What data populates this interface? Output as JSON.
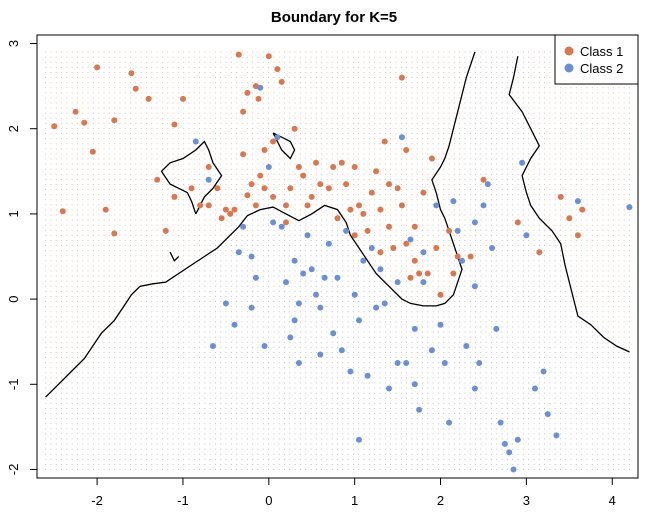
{
  "chart_data": {
    "type": "scatter",
    "title": "Boundary for K=5",
    "xlabel": "",
    "ylabel": "",
    "xlim": [
      -2.7,
      4.3
    ],
    "ylim": [
      -2.1,
      3.1
    ],
    "x_ticks": [
      -2,
      -1,
      0,
      1,
      2,
      3,
      4
    ],
    "y_ticks": [
      -2,
      -1,
      0,
      1,
      2,
      3
    ],
    "legend": {
      "position": "top-right",
      "entries": [
        {
          "label": "Class 1",
          "color": "#D9774F"
        },
        {
          "label": "Class 2",
          "color": "#6A8FD6"
        }
      ]
    },
    "grid_region": {
      "x": [
        -2.6,
        4.2
      ],
      "y": [
        -2.0,
        2.9
      ]
    },
    "colors": {
      "class1": "#D9774F",
      "class2": "#6A8FD6",
      "boundary": "#000000"
    },
    "series": [
      {
        "name": "Class 1",
        "points": [
          [
            -2.5,
            2.03
          ],
          [
            -2.4,
            1.03
          ],
          [
            -2.25,
            2.2
          ],
          [
            -2.15,
            2.07
          ],
          [
            -2.05,
            1.73
          ],
          [
            -2.0,
            2.72
          ],
          [
            -1.9,
            1.05
          ],
          [
            -1.8,
            2.1
          ],
          [
            -1.8,
            0.77
          ],
          [
            -1.6,
            2.65
          ],
          [
            -1.55,
            2.47
          ],
          [
            -1.4,
            2.35
          ],
          [
            -1.3,
            1.4
          ],
          [
            -1.2,
            0.8
          ],
          [
            -1.1,
            2.05
          ],
          [
            -1.1,
            1.2
          ],
          [
            -1.0,
            2.35
          ],
          [
            -0.9,
            1.3
          ],
          [
            -0.8,
            1.1
          ],
          [
            -0.7,
            1.1
          ],
          [
            -0.7,
            1.55
          ],
          [
            -0.6,
            1.3
          ],
          [
            -0.55,
            0.95
          ],
          [
            -0.5,
            1.05
          ],
          [
            -0.45,
            1.0
          ],
          [
            -0.4,
            1.05
          ],
          [
            -0.35,
            2.87
          ],
          [
            -0.3,
            2.2
          ],
          [
            -0.3,
            1.7
          ],
          [
            -0.25,
            2.42
          ],
          [
            -0.25,
            1.22
          ],
          [
            -0.2,
            1.35
          ],
          [
            -0.15,
            2.5
          ],
          [
            -0.15,
            1.1
          ],
          [
            -0.12,
            2.35
          ],
          [
            -0.1,
            1.45
          ],
          [
            -0.05,
            1.75
          ],
          [
            -0.05,
            1.3
          ],
          [
            0.0,
            2.85
          ],
          [
            0.05,
            1.85
          ],
          [
            0.05,
            1.2
          ],
          [
            0.1,
            2.7
          ],
          [
            0.15,
            2.55
          ],
          [
            0.2,
            1.1
          ],
          [
            0.2,
            0.9
          ],
          [
            0.25,
            1.3
          ],
          [
            0.3,
            2.0
          ],
          [
            0.35,
            1.55
          ],
          [
            0.4,
            1.45
          ],
          [
            0.45,
            1.1
          ],
          [
            0.5,
            1.2
          ],
          [
            0.55,
            1.6
          ],
          [
            0.6,
            1.35
          ],
          [
            0.7,
            1.3
          ],
          [
            0.75,
            1.55
          ],
          [
            0.8,
            0.95
          ],
          [
            0.85,
            1.6
          ],
          [
            0.9,
            1.35
          ],
          [
            0.95,
            1.05
          ],
          [
            1.0,
            1.55
          ],
          [
            1.0,
            0.75
          ],
          [
            1.05,
            1.1
          ],
          [
            1.1,
            1.0
          ],
          [
            1.15,
            0.8
          ],
          [
            1.2,
            1.25
          ],
          [
            1.25,
            1.5
          ],
          [
            1.3,
            1.05
          ],
          [
            1.3,
            0.55
          ],
          [
            1.35,
            1.85
          ],
          [
            1.4,
            1.35
          ],
          [
            1.4,
            0.85
          ],
          [
            1.45,
            0.6
          ],
          [
            1.5,
            1.3
          ],
          [
            1.55,
            2.6
          ],
          [
            1.55,
            1.1
          ],
          [
            1.6,
            1.75
          ],
          [
            1.6,
            0.65
          ],
          [
            1.65,
            0.25
          ],
          [
            1.7,
            0.85
          ],
          [
            1.7,
            0.45
          ],
          [
            1.75,
            0.3
          ],
          [
            1.8,
            1.25
          ],
          [
            1.85,
            0.3
          ],
          [
            1.9,
            1.65
          ],
          [
            1.95,
            0.6
          ],
          [
            2.0,
            0.05
          ],
          [
            2.1,
            0.8
          ],
          [
            2.15,
            0.3
          ],
          [
            2.2,
            0.5
          ],
          [
            2.35,
            0.5
          ],
          [
            2.5,
            1.4
          ],
          [
            2.9,
            0.9
          ],
          [
            3.15,
            0.55
          ],
          [
            3.4,
            1.2
          ],
          [
            3.5,
            0.95
          ],
          [
            3.6,
            0.75
          ],
          [
            3.65,
            1.05
          ]
        ]
      },
      {
        "name": "Class 2",
        "points": [
          [
            -0.85,
            1.85
          ],
          [
            -0.7,
            1.4
          ],
          [
            -0.65,
            -0.55
          ],
          [
            -0.5,
            -0.05
          ],
          [
            -0.4,
            -0.3
          ],
          [
            -0.35,
            0.55
          ],
          [
            -0.3,
            0.85
          ],
          [
            -0.2,
            -0.1
          ],
          [
            -0.15,
            0.25
          ],
          [
            -0.1,
            2.48
          ],
          [
            -0.05,
            -0.55
          ],
          [
            0.0,
            1.55
          ],
          [
            0.05,
            0.9
          ],
          [
            0.1,
            1.9
          ],
          [
            0.15,
            0.85
          ],
          [
            0.2,
            0.2
          ],
          [
            0.25,
            -0.45
          ],
          [
            0.3,
            0.45
          ],
          [
            0.3,
            -0.25
          ],
          [
            0.35,
            -0.05
          ],
          [
            0.4,
            0.3
          ],
          [
            0.45,
            0.75
          ],
          [
            0.5,
            0.35
          ],
          [
            0.55,
            0.05
          ],
          [
            0.6,
            -0.1
          ],
          [
            0.65,
            0.25
          ],
          [
            0.7,
            0.65
          ],
          [
            0.75,
            -0.4
          ],
          [
            0.8,
            0.25
          ],
          [
            0.85,
            -0.6
          ],
          [
            0.9,
            0.8
          ],
          [
            0.95,
            -0.85
          ],
          [
            1.0,
            0.05
          ],
          [
            1.05,
            -0.25
          ],
          [
            1.05,
            -1.65
          ],
          [
            1.1,
            0.45
          ],
          [
            1.15,
            -0.9
          ],
          [
            1.2,
            0.6
          ],
          [
            1.25,
            -0.1
          ],
          [
            1.3,
            0.35
          ],
          [
            1.35,
            -0.05
          ],
          [
            1.4,
            -1.05
          ],
          [
            1.5,
            0.2
          ],
          [
            1.5,
            -0.75
          ],
          [
            1.55,
            1.9
          ],
          [
            1.6,
            -0.75
          ],
          [
            1.65,
            0.7
          ],
          [
            1.7,
            -0.35
          ],
          [
            1.75,
            -1.3
          ],
          [
            1.8,
            0.55
          ],
          [
            1.9,
            -0.6
          ],
          [
            1.95,
            1.1
          ],
          [
            2.05,
            -0.75
          ],
          [
            2.1,
            -1.45
          ],
          [
            2.15,
            1.15
          ],
          [
            2.2,
            0.8
          ],
          [
            2.25,
            0.45
          ],
          [
            2.3,
            -0.55
          ],
          [
            2.4,
            0.9
          ],
          [
            2.4,
            0.15
          ],
          [
            2.45,
            -0.75
          ],
          [
            2.5,
            1.1
          ],
          [
            2.55,
            1.35
          ],
          [
            2.6,
            0.6
          ],
          [
            2.65,
            -0.35
          ],
          [
            2.7,
            -1.45
          ],
          [
            2.75,
            -1.7
          ],
          [
            2.8,
            -1.8
          ],
          [
            2.85,
            -2.0
          ],
          [
            2.9,
            -1.65
          ],
          [
            2.95,
            1.6
          ],
          [
            3.0,
            0.75
          ],
          [
            3.1,
            -1.05
          ],
          [
            3.2,
            -0.85
          ],
          [
            3.25,
            -1.35
          ],
          [
            3.35,
            -1.6
          ],
          [
            3.6,
            1.15
          ],
          [
            4.2,
            1.08
          ],
          [
            2.4,
            -1.05
          ],
          [
            1.7,
            -1.0
          ],
          [
            0.35,
            -0.75
          ],
          [
            0.6,
            -0.65
          ],
          [
            1.8,
            0.2
          ],
          [
            2.0,
            -0.3
          ],
          [
            -0.2,
            0.5
          ]
        ]
      }
    ]
  }
}
